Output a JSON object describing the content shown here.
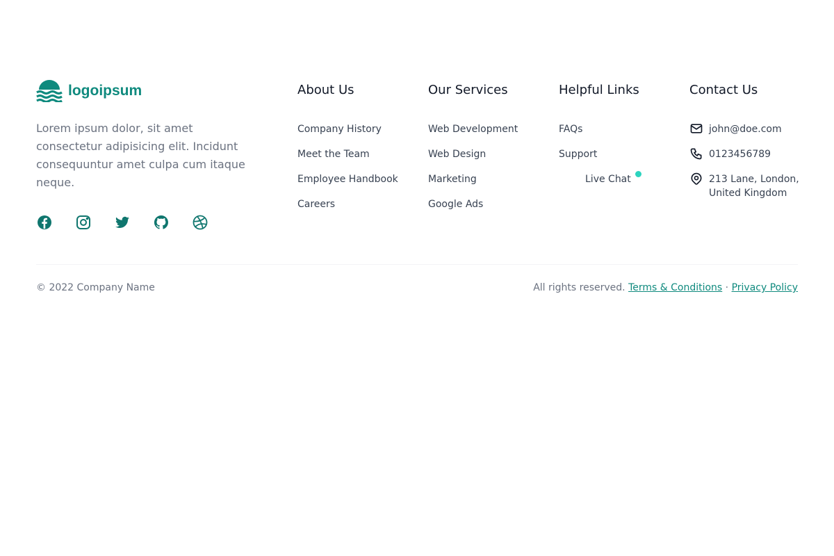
{
  "brand": {
    "name": "logoipsum",
    "description": "Lorem ipsum dolor, sit amet consectetur adipisicing elit. Incidunt consequuntur amet culpa cum itaque neque.",
    "color": "#0f8a7e"
  },
  "social": [
    "facebook-icon",
    "instagram-icon",
    "twitter-icon",
    "github-icon",
    "dribbble-icon"
  ],
  "columns": [
    {
      "title": "About Us",
      "links": [
        "Company History",
        "Meet the Team",
        "Employee Handbook",
        "Careers"
      ]
    },
    {
      "title": "Our Services",
      "links": [
        "Web Development",
        "Web Design",
        "Marketing",
        "Google Ads"
      ]
    },
    {
      "title": "Helpful Links",
      "links": [
        "FAQs",
        "Support",
        "Live Chat"
      ]
    }
  ],
  "contact": {
    "title": "Contact Us",
    "email": "john@doe.com",
    "phone": "0123456789",
    "address": "213 Lane, London, United Kingdom"
  },
  "bottom": {
    "copyright": "© 2022 Company Name",
    "rights": "All rights reserved.",
    "terms": "Terms & Conditions",
    "separator": "·",
    "privacy": "Privacy Policy"
  }
}
